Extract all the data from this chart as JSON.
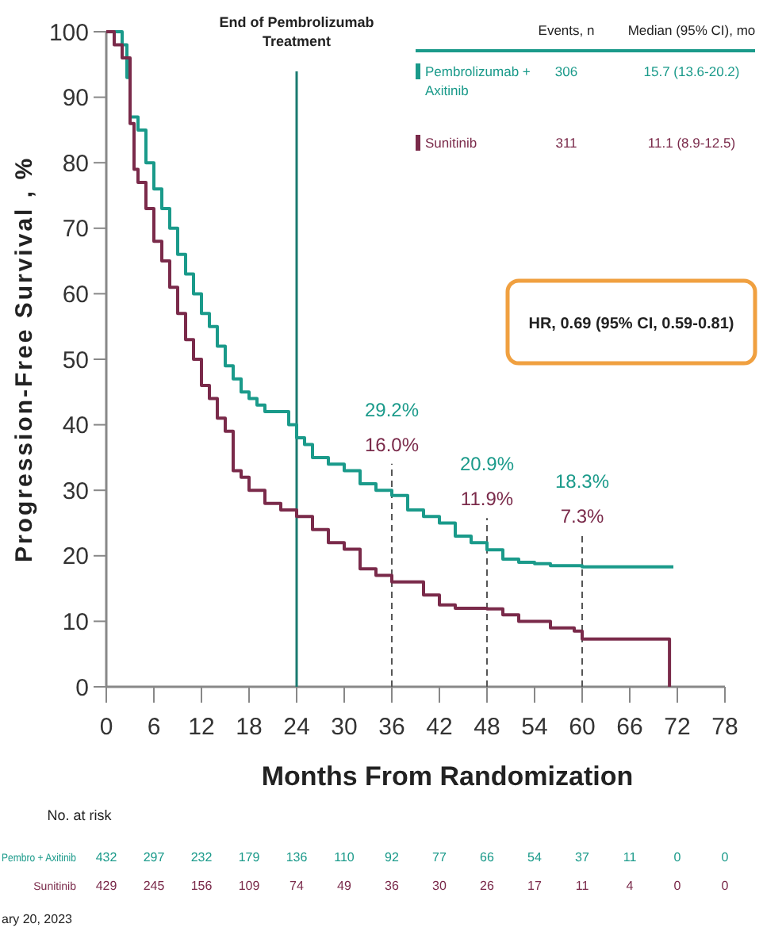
{
  "chart_data": {
    "type": "step",
    "xlabel": "Months From Randomization",
    "ylabel": "Progression-Free Survival , %",
    "xlim": [
      0,
      78
    ],
    "ylim": [
      0,
      100
    ],
    "xticks": [
      0,
      6,
      12,
      18,
      24,
      30,
      36,
      42,
      48,
      54,
      60,
      66,
      72,
      78
    ],
    "yticks": [
      0,
      10,
      20,
      30,
      40,
      50,
      60,
      70,
      80,
      90,
      100
    ],
    "grid": false,
    "legend": "top right",
    "series": [
      {
        "name": "Pembrolizumab + Axitinib",
        "color": "#1a9a8a",
        "x": [
          0,
          2,
          2.6,
          3,
          4,
          5,
          6,
          7,
          8,
          9,
          10,
          11,
          12,
          13,
          14,
          15,
          16,
          17,
          18,
          19,
          20,
          22,
          23,
          24,
          25,
          26,
          28,
          30,
          32,
          34,
          36,
          38,
          40,
          42,
          44,
          46,
          48,
          50,
          52,
          54,
          56,
          60,
          71.5
        ],
        "values": [
          100,
          98,
          93,
          87,
          85,
          80,
          76,
          73,
          70,
          66,
          63,
          60,
          57,
          55,
          52,
          49,
          47,
          45,
          44,
          43,
          42,
          42,
          40,
          38,
          37,
          35,
          34,
          33,
          31,
          30,
          29.2,
          27,
          26,
          25,
          23,
          22,
          20.9,
          19.5,
          19,
          18.8,
          18.5,
          18.3,
          18.3
        ]
      },
      {
        "name": "Sunitinib",
        "color": "#7a2a4a",
        "x": [
          0,
          1,
          2,
          3,
          3.5,
          4,
          5,
          6,
          7,
          8,
          9,
          10,
          11,
          12,
          13,
          14,
          15,
          16,
          17,
          18,
          20,
          22,
          24,
          26,
          28,
          30,
          32,
          34,
          36,
          40,
          42,
          44,
          48,
          50,
          52,
          56,
          59,
          60,
          71,
          71.01
        ],
        "values": [
          100,
          98,
          96,
          86,
          79,
          77,
          73,
          68,
          65,
          61,
          57,
          53,
          50,
          46,
          44,
          41,
          39,
          33,
          32,
          30,
          28,
          27,
          26,
          24,
          22,
          21,
          18,
          17,
          16,
          14,
          12.5,
          12,
          11.9,
          11,
          10,
          9,
          8.5,
          7.3,
          7.3,
          0
        ]
      }
    ],
    "ref_lines": [
      {
        "axis": "x",
        "value": 24,
        "label": "End of Pembrolizumab Treatment",
        "color": "#1a7a70",
        "line_style": "solid"
      },
      {
        "axis": "x",
        "value": 36,
        "color": "#555555",
        "line_style": "dashed"
      },
      {
        "axis": "x",
        "value": 48,
        "color": "#555555",
        "line_style": "dashed"
      },
      {
        "axis": "x",
        "value": 60,
        "color": "#555555",
        "line_style": "dashed"
      }
    ],
    "annotations": [
      "29.2%",
      "16.0%",
      "20.9%",
      "11.9%",
      "18.3%",
      "7.3%",
      "Events, n",
      "Median (95% CI), mo",
      "306",
      "15.7 (13.6-20.2)",
      "311",
      "11.1 (8.9-12.5)",
      "HR, 0.69 (95% CI, 0.59-0.81)",
      "No. at risk",
      "Pembro + Axitinib",
      "432",
      "297",
      "232",
      "179",
      "136",
      "110",
      "92",
      "77",
      "66",
      "54",
      "37",
      "11",
      "0",
      "0",
      "Sunitinib",
      "429",
      "245",
      "156",
      "109",
      "74",
      "49",
      "36",
      "30",
      "26",
      "17",
      "11",
      "4",
      "0",
      "0",
      "ary 20, 2023"
    ]
  }
}
